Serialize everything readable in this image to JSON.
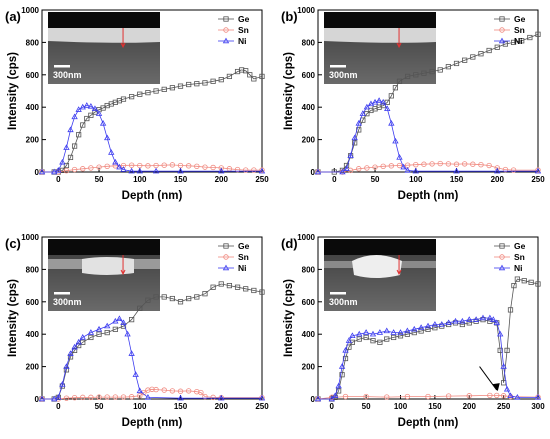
{
  "colors": {
    "Ge": "#555555",
    "Sn": "#f08a80",
    "Ni": "#3c3cf0"
  },
  "chart_data": [
    {
      "type": "line",
      "panel_label": "(a)",
      "xlabel": "Depth (nm)",
      "ylabel": "Intensity (cps)",
      "xlim": [
        -20,
        250
      ],
      "ylim": [
        0,
        1000
      ],
      "xticks": [
        0,
        50,
        100,
        150,
        200,
        250
      ],
      "yticks": [
        0,
        200,
        400,
        600,
        800,
        1000
      ],
      "legend": [
        "Ge",
        "Sn",
        "Ni"
      ],
      "legend_position": "top-right",
      "scale_bar": "300nm",
      "series": [
        {
          "name": "Ge",
          "x": [
            -20,
            -5,
            0,
            5,
            10,
            15,
            20,
            25,
            30,
            35,
            40,
            45,
            50,
            55,
            60,
            65,
            70,
            75,
            80,
            90,
            100,
            110,
            120,
            130,
            140,
            150,
            160,
            170,
            180,
            190,
            200,
            210,
            220,
            225,
            230,
            235,
            240,
            250
          ],
          "y": [
            0,
            0,
            0,
            10,
            40,
            90,
            160,
            230,
            290,
            330,
            350,
            370,
            385,
            395,
            410,
            420,
            430,
            440,
            450,
            465,
            480,
            490,
            500,
            510,
            520,
            530,
            540,
            545,
            550,
            560,
            570,
            590,
            620,
            630,
            625,
            600,
            575,
            590
          ]
        },
        {
          "name": "Sn",
          "x": [
            -20,
            0,
            10,
            20,
            30,
            40,
            50,
            60,
            70,
            80,
            90,
            100,
            110,
            120,
            130,
            140,
            150,
            160,
            170,
            180,
            190,
            200,
            210,
            220,
            230,
            240,
            250
          ],
          "y": [
            0,
            0,
            8,
            15,
            20,
            25,
            30,
            35,
            38,
            40,
            42,
            40,
            38,
            40,
            42,
            44,
            40,
            38,
            35,
            30,
            28,
            25,
            20,
            15,
            12,
            12,
            12
          ]
        },
        {
          "name": "Ni",
          "x": [
            -20,
            -5,
            0,
            5,
            10,
            15,
            20,
            25,
            30,
            35,
            40,
            45,
            50,
            55,
            60,
            65,
            70,
            75,
            80,
            90,
            100,
            120,
            150,
            200,
            250
          ],
          "y": [
            0,
            0,
            10,
            60,
            150,
            260,
            340,
            385,
            400,
            410,
            405,
            390,
            360,
            300,
            210,
            120,
            60,
            30,
            15,
            5,
            5,
            5,
            5,
            5,
            5
          ]
        }
      ]
    },
    {
      "type": "line",
      "panel_label": "(b)",
      "xlabel": "Depth (nm)",
      "ylabel": "Intensity (cps)",
      "xlim": [
        -20,
        250
      ],
      "ylim": [
        0,
        1000
      ],
      "xticks": [
        0,
        50,
        100,
        150,
        200,
        250
      ],
      "yticks": [
        0,
        200,
        400,
        600,
        800,
        1000
      ],
      "legend": [
        "Ge",
        "Sn",
        "Ni"
      ],
      "legend_position": "top-right",
      "scale_bar": "300nm",
      "series": [
        {
          "name": "Ge",
          "x": [
            -20,
            0,
            10,
            15,
            20,
            25,
            30,
            35,
            40,
            45,
            50,
            55,
            60,
            65,
            70,
            75,
            80,
            90,
            100,
            110,
            120,
            130,
            140,
            150,
            160,
            170,
            180,
            190,
            200,
            210,
            220,
            230,
            240,
            250
          ],
          "y": [
            0,
            0,
            10,
            40,
            100,
            180,
            260,
            320,
            360,
            380,
            390,
            400,
            410,
            430,
            470,
            520,
            560,
            590,
            600,
            610,
            620,
            630,
            650,
            670,
            690,
            710,
            730,
            750,
            770,
            790,
            800,
            810,
            830,
            850
          ]
        },
        {
          "name": "Sn",
          "x": [
            -20,
            10,
            20,
            30,
            40,
            50,
            60,
            70,
            80,
            90,
            100,
            110,
            120,
            130,
            140,
            150,
            160,
            170,
            180,
            190,
            200,
            210,
            220,
            250
          ],
          "y": [
            0,
            0,
            10,
            20,
            25,
            30,
            35,
            38,
            40,
            42,
            45,
            48,
            50,
            52,
            50,
            48,
            50,
            48,
            45,
            40,
            25,
            15,
            12,
            12
          ]
        },
        {
          "name": "Ni",
          "x": [
            -20,
            10,
            15,
            20,
            25,
            30,
            35,
            40,
            45,
            50,
            55,
            60,
            65,
            70,
            75,
            80,
            85,
            90,
            100,
            150,
            200,
            250
          ],
          "y": [
            0,
            0,
            20,
            100,
            210,
            300,
            360,
            400,
            420,
            430,
            440,
            430,
            390,
            300,
            190,
            90,
            30,
            10,
            5,
            5,
            5,
            5
          ]
        }
      ]
    },
    {
      "type": "line",
      "panel_label": "(c)",
      "xlabel": "Depth (nm)",
      "ylabel": "Intensity (cps)",
      "xlim": [
        -20,
        250
      ],
      "ylim": [
        0,
        1000
      ],
      "xticks": [
        0,
        50,
        100,
        150,
        200,
        250
      ],
      "yticks": [
        0,
        200,
        400,
        600,
        800,
        1000
      ],
      "legend": [
        "Ge",
        "Sn",
        "Ni"
      ],
      "legend_position": "top-right",
      "scale_bar": "300nm",
      "series": [
        {
          "name": "Ge",
          "x": [
            -20,
            -5,
            0,
            5,
            10,
            15,
            20,
            25,
            30,
            40,
            50,
            60,
            70,
            80,
            90,
            100,
            110,
            120,
            130,
            140,
            150,
            160,
            170,
            180,
            190,
            200,
            210,
            220,
            230,
            240,
            250
          ],
          "y": [
            0,
            0,
            10,
            80,
            180,
            260,
            300,
            330,
            350,
            380,
            400,
            410,
            430,
            450,
            490,
            560,
            610,
            630,
            630,
            620,
            600,
            620,
            630,
            650,
            690,
            710,
            700,
            690,
            680,
            670,
            660
          ]
        },
        {
          "name": "Sn",
          "x": [
            -20,
            0,
            10,
            20,
            30,
            40,
            50,
            60,
            70,
            80,
            90,
            100,
            105,
            110,
            115,
            120,
            130,
            140,
            150,
            160,
            170,
            175,
            180,
            190,
            200,
            250
          ],
          "y": [
            0,
            0,
            5,
            8,
            10,
            10,
            12,
            12,
            12,
            12,
            14,
            20,
            40,
            55,
            60,
            58,
            55,
            50,
            48,
            50,
            45,
            40,
            15,
            10,
            8,
            8
          ]
        },
        {
          "name": "Ni",
          "x": [
            -20,
            -5,
            0,
            5,
            10,
            15,
            20,
            25,
            30,
            40,
            50,
            60,
            70,
            75,
            80,
            85,
            90,
            95,
            100,
            110,
            150,
            200,
            250
          ],
          "y": [
            0,
            0,
            10,
            90,
            200,
            280,
            320,
            350,
            380,
            410,
            430,
            450,
            480,
            495,
            470,
            400,
            280,
            150,
            50,
            10,
            5,
            5,
            5
          ]
        }
      ]
    },
    {
      "type": "line",
      "panel_label": "(d)",
      "xlabel": "Depth (nm)",
      "ylabel": "Intensity (cps)",
      "xlim": [
        -20,
        300
      ],
      "ylim": [
        0,
        1000
      ],
      "xticks": [
        0,
        50,
        100,
        150,
        200,
        250,
        300
      ],
      "yticks": [
        0,
        200,
        400,
        600,
        800,
        1000
      ],
      "legend": [
        "Ge",
        "Sn",
        "Ni"
      ],
      "legend_position": "top-right",
      "scale_bar": "300nm",
      "series": [
        {
          "name": "Ge",
          "x": [
            -20,
            0,
            5,
            10,
            15,
            20,
            25,
            30,
            40,
            50,
            60,
            70,
            80,
            90,
            100,
            110,
            120,
            130,
            140,
            150,
            160,
            170,
            180,
            190,
            200,
            210,
            220,
            230,
            240,
            245,
            250,
            255,
            260,
            265,
            270,
            280,
            290,
            300
          ],
          "y": [
            0,
            0,
            10,
            50,
            150,
            250,
            320,
            350,
            370,
            380,
            360,
            350,
            370,
            380,
            390,
            400,
            410,
            420,
            430,
            440,
            450,
            460,
            470,
            460,
            470,
            480,
            490,
            480,
            470,
            300,
            100,
            300,
            550,
            700,
            740,
            730,
            720,
            710
          ]
        },
        {
          "name": "Sn",
          "x": [
            -20,
            0,
            20,
            50,
            80,
            110,
            140,
            170,
            200,
            230,
            240,
            250,
            260,
            300
          ],
          "y": [
            0,
            10,
            15,
            15,
            12,
            15,
            15,
            18,
            20,
            22,
            22,
            20,
            15,
            12
          ]
        },
        {
          "name": "Ni",
          "x": [
            -20,
            0,
            5,
            10,
            15,
            20,
            25,
            30,
            40,
            50,
            60,
            70,
            80,
            90,
            100,
            110,
            120,
            130,
            140,
            150,
            160,
            170,
            180,
            190,
            200,
            210,
            220,
            230,
            235,
            240,
            245,
            250,
            255,
            260,
            270,
            300
          ],
          "y": [
            0,
            0,
            20,
            80,
            200,
            300,
            360,
            390,
            400,
            410,
            400,
            410,
            420,
            410,
            410,
            420,
            430,
            440,
            450,
            460,
            460,
            470,
            480,
            480,
            490,
            490,
            500,
            500,
            490,
            470,
            400,
            200,
            60,
            20,
            10,
            10
          ]
        }
      ]
    }
  ]
}
